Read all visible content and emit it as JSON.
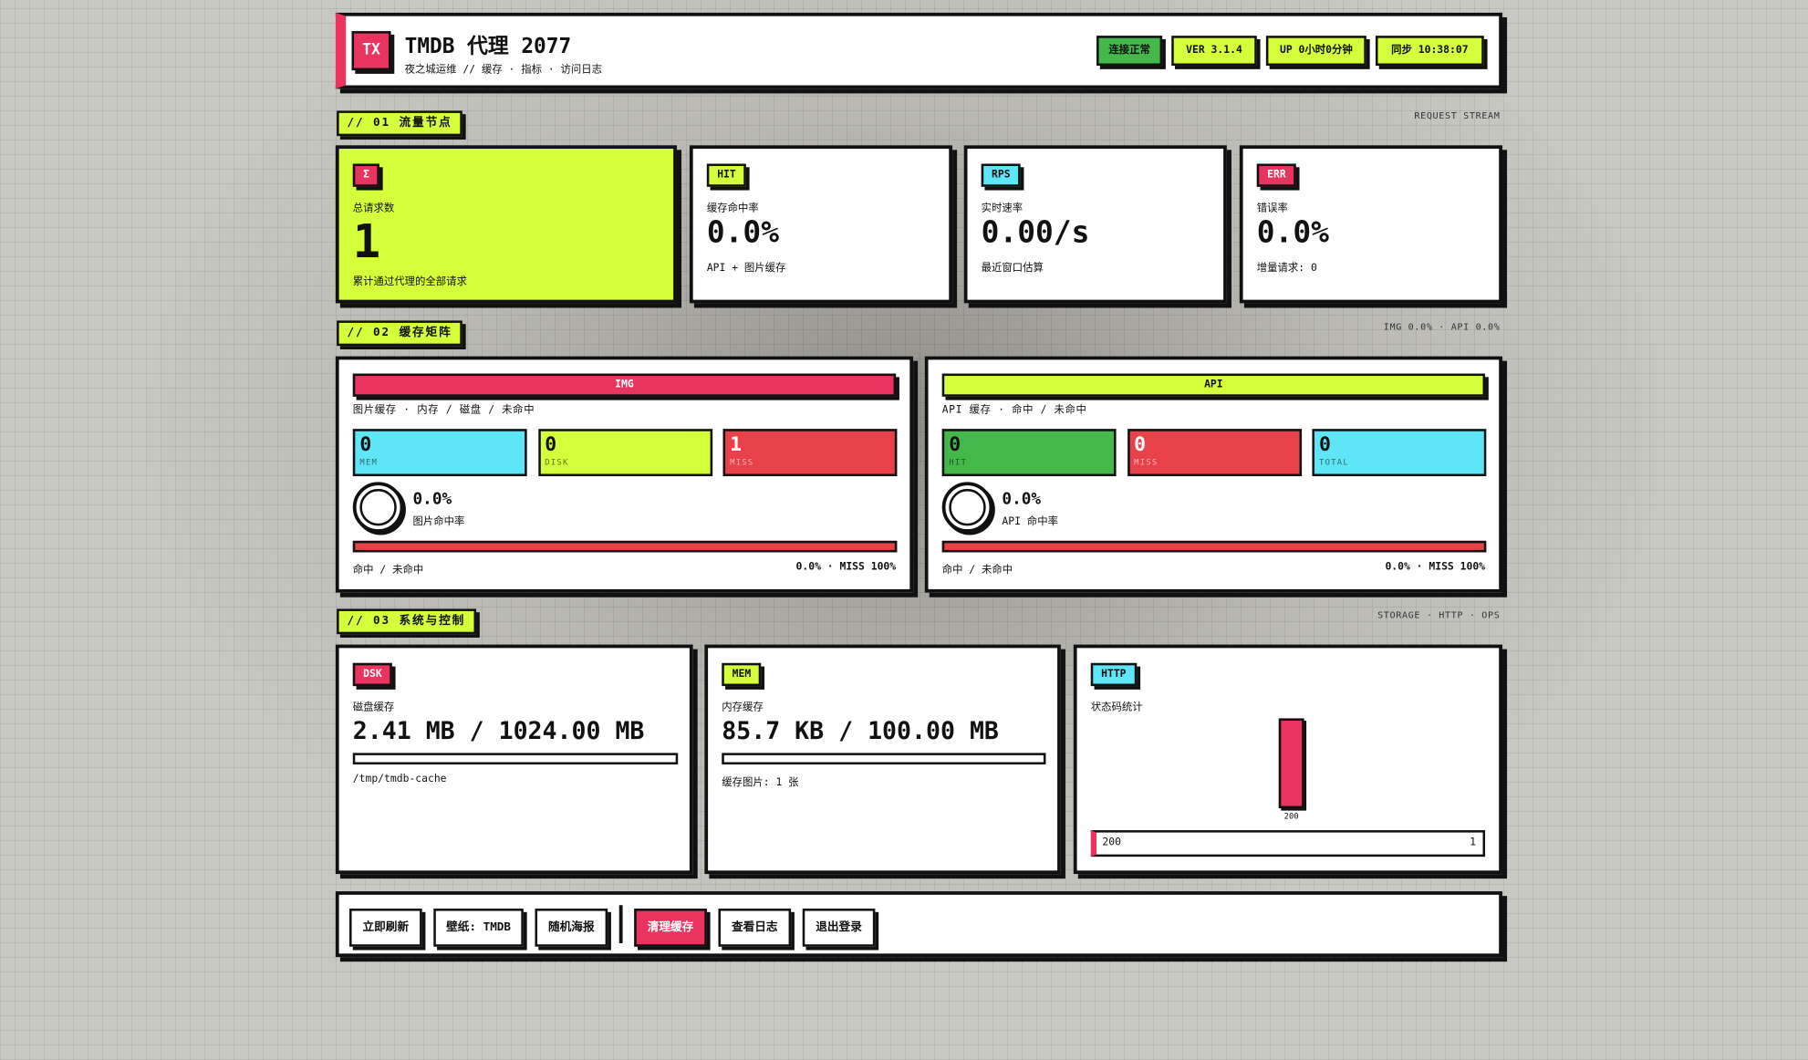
{
  "header": {
    "logo": "TX",
    "title": "TMDB 代理 2077",
    "subtitle": "夜之城运维 // 缓存 · 指标 · 访问日志",
    "badges": [
      "连接正常",
      "VER 3.1.4",
      "UP 0小时0分钟",
      "同步 10:38:07"
    ]
  },
  "sections": [
    {
      "label": "// 01 流量节点",
      "note": "REQUEST STREAM"
    },
    {
      "label": "// 02 缓存矩阵",
      "note": "IMG 0.0% · API 0.0%"
    },
    {
      "label": "// 03 系统与控制",
      "note": "STORAGE · HTTP · OPS"
    }
  ],
  "stats": [
    {
      "tag": "Σ",
      "label": "总请求数",
      "value": "1",
      "desc": "累计通过代理的全部请求"
    },
    {
      "tag": "HIT",
      "label": "缓存命中率",
      "value": "0.0%",
      "desc": "API + 图片缓存"
    },
    {
      "tag": "RPS",
      "label": "实时速率",
      "value": "0.00/s",
      "desc": "最近窗口估算"
    },
    {
      "tag": "ERR",
      "label": "错误率",
      "value": "0.0%",
      "desc": "增量请求: 0"
    }
  ],
  "cache": [
    {
      "title": "IMG",
      "subtitle": "图片缓存 · 内存 / 磁盘 / 未命中",
      "cells": [
        {
          "value": "0",
          "label": "MEM"
        },
        {
          "value": "0",
          "label": "DISK"
        },
        {
          "value": "1",
          "label": "MISS"
        }
      ],
      "rate": "0.0%",
      "rate_label": "图片命中率",
      "bar_label": "命中 / 未命中",
      "bar_value": "0.0% · MISS 100%"
    },
    {
      "title": "API",
      "subtitle": "API 缓存 · 命中 / 未命中",
      "cells": [
        {
          "value": "0",
          "label": "HIT"
        },
        {
          "value": "0",
          "label": "MISS"
        },
        {
          "value": "0",
          "label": "TOTAL"
        }
      ],
      "rate": "0.0%",
      "rate_label": "API 命中率",
      "bar_label": "命中 / 未命中",
      "bar_value": "0.0% · MISS 100%"
    }
  ],
  "system": {
    "disk": {
      "tag": "DSK",
      "label": "磁盘缓存",
      "value": "2.41 MB / 1024.00 MB",
      "note": "/tmp/tmdb-cache"
    },
    "mem": {
      "tag": "MEM",
      "label": "内存缓存",
      "value": "85.7 KB / 100.00 MB",
      "note": "缓存图片: 1 张"
    },
    "http": {
      "tag": "HTTP",
      "label": "状态码统计",
      "codes": [
        {
          "code": "200",
          "count": 1
        }
      ]
    }
  },
  "actions": [
    "立即刷新",
    "壁纸: TMDB",
    "随机海报",
    "清理缓存",
    "查看日志",
    "退出登录"
  ]
}
